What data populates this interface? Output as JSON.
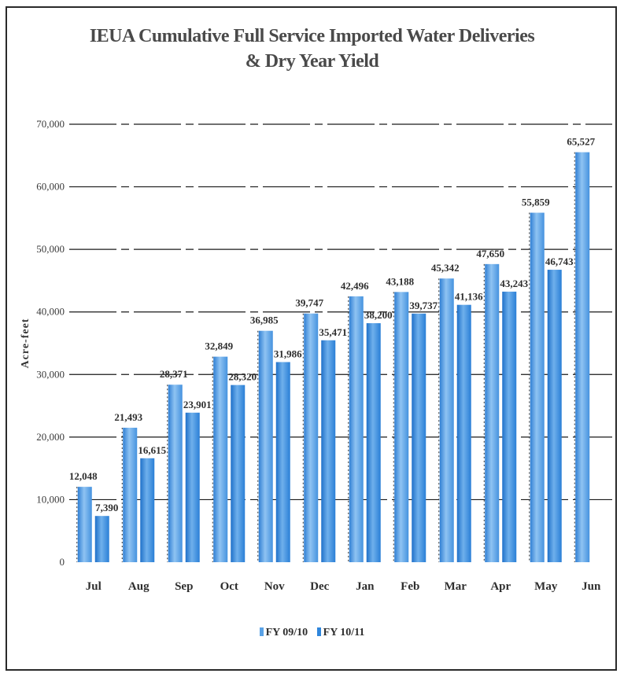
{
  "chart_data": {
    "type": "bar",
    "title": "IEUA Cumulative Full Service Imported Water Deliveries",
    "subtitle": "& Dry Year Yield",
    "xlabel": "",
    "ylabel": "Acre-feet",
    "ylim": [
      0,
      70000
    ],
    "yticks": [
      0,
      10000,
      20000,
      30000,
      40000,
      50000,
      60000,
      70000
    ],
    "ytick_labels": [
      "0",
      "10,000",
      "20,000",
      "30,000",
      "40,000",
      "50,000",
      "60,000",
      "70,000"
    ],
    "grid": true,
    "legend_position": "bottom",
    "categories": [
      "Jul",
      "Aug",
      "Sep",
      "Oct",
      "Nov",
      "Dec",
      "Jan",
      "Feb",
      "Mar",
      "Apr",
      "May",
      "Jun"
    ],
    "series": [
      {
        "name": "FY 09/10",
        "color": "#5aa2e6",
        "values": [
          12048,
          21493,
          28371,
          32849,
          36985,
          39747,
          42496,
          43188,
          45342,
          47650,
          55859,
          65527
        ],
        "labels": [
          "12,048",
          "21,493",
          "28,371",
          "32,849",
          "36,985",
          "39,747",
          "42,496",
          "43,188",
          "45,342",
          "47,650",
          "55,859",
          "65,527"
        ]
      },
      {
        "name": "FY 10/11",
        "color": "#2f86dc",
        "values": [
          7390,
          16615,
          23901,
          28320,
          31986,
          35471,
          38200,
          39737,
          41136,
          43243,
          46743,
          null
        ],
        "labels": [
          "7,390",
          "16,615",
          "23,901",
          "28,320",
          "31,986",
          "35,471",
          "38,200",
          "39,737",
          "41,136",
          "43,243",
          "46,743",
          null
        ]
      }
    ]
  }
}
